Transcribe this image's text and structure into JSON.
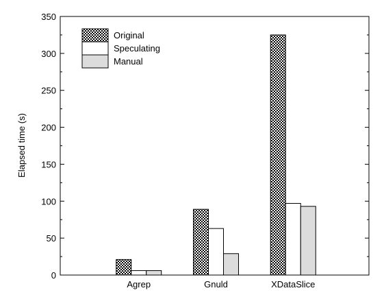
{
  "chart_data": {
    "type": "bar",
    "title": "",
    "xlabel": "",
    "ylabel": "Elapsed time (s)",
    "ylim": [
      0,
      350
    ],
    "yticks": [
      0,
      50,
      100,
      150,
      200,
      250,
      300,
      350
    ],
    "grid": false,
    "legend_position": "top-left",
    "categories": [
      "Agrep",
      "Gnuld",
      "XDataSlice"
    ],
    "series": [
      {
        "name": "Original",
        "values": [
          21,
          89,
          325
        ],
        "pattern": "checker",
        "color": "#000000"
      },
      {
        "name": "Speculating",
        "values": [
          6,
          63,
          97
        ],
        "pattern": "solid",
        "color": "#ffffff"
      },
      {
        "name": "Manual",
        "values": [
          6,
          29,
          93
        ],
        "pattern": "solid",
        "color": "#dcdcdc"
      }
    ]
  }
}
